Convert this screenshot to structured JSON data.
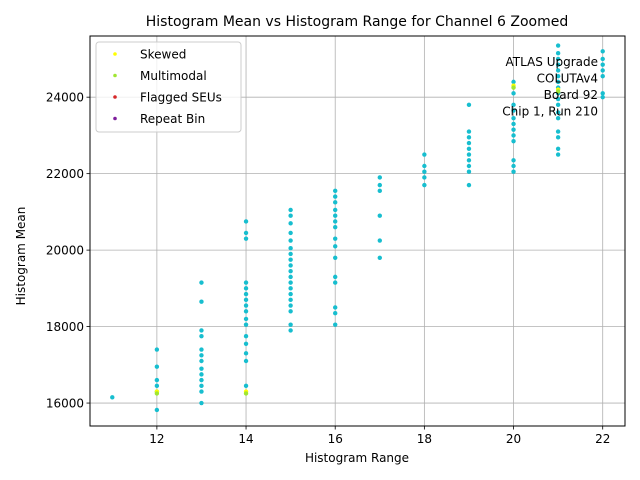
{
  "chart_data": {
    "type": "scatter",
    "title": "Histogram Mean vs Histogram Range for Channel 6 Zoomed",
    "xlabel": "Histogram Range",
    "ylabel": "Histogram Mean",
    "xlim": [
      10.5,
      22.5
    ],
    "ylim": [
      15400,
      25600
    ],
    "xticks": [
      12,
      14,
      16,
      18,
      20,
      22
    ],
    "yticks": [
      16000,
      18000,
      20000,
      22000,
      24000
    ],
    "grid": true,
    "legend_position": "top-left",
    "legend": [
      {
        "name": "Skewed",
        "color": "#ffff00"
      },
      {
        "name": "Multimodal",
        "color": "#a0e632"
      },
      {
        "name": "Flagged SEUs",
        "color": "#d62728"
      },
      {
        "name": "Repeat Bin",
        "color": "#7e1e9c"
      }
    ],
    "annotation": [
      "ATLAS Upgrade",
      "COLUTAv4",
      "Board 92",
      "Chip 1, Run 210"
    ],
    "point_color": "#17becf",
    "series": [
      {
        "name": "Skewed",
        "color": "#ffff00",
        "points": [
          [
            12,
            16300
          ],
          [
            14,
            16300
          ],
          [
            20,
            24300
          ],
          [
            21,
            24200
          ]
        ]
      },
      {
        "name": "Multimodal",
        "color": "#a0e632",
        "points": [
          [
            12,
            16250
          ],
          [
            14,
            16250
          ],
          [
            20,
            24250
          ],
          [
            21,
            24150
          ]
        ]
      },
      {
        "name": "Flagged SEUs",
        "color": "#d62728",
        "points": []
      },
      {
        "name": "Repeat Bin",
        "color": "#7e1e9c",
        "points": []
      },
      {
        "name": "",
        "color": "#17becf",
        "points": [
          [
            11,
            16150
          ],
          [
            12,
            15820
          ],
          [
            12,
            16300
          ],
          [
            12,
            16450
          ],
          [
            12,
            16600
          ],
          [
            12,
            16950
          ],
          [
            12,
            17400
          ],
          [
            13,
            16000
          ],
          [
            13,
            16300
          ],
          [
            13,
            16450
          ],
          [
            13,
            16600
          ],
          [
            13,
            16750
          ],
          [
            13,
            16900
          ],
          [
            13,
            17100
          ],
          [
            13,
            17250
          ],
          [
            13,
            17400
          ],
          [
            13,
            17750
          ],
          [
            13,
            17900
          ],
          [
            13,
            18650
          ],
          [
            13,
            19150
          ],
          [
            14,
            16450
          ],
          [
            14,
            17100
          ],
          [
            14,
            17300
          ],
          [
            14,
            17550
          ],
          [
            14,
            17750
          ],
          [
            14,
            18050
          ],
          [
            14,
            18200
          ],
          [
            14,
            18400
          ],
          [
            14,
            18550
          ],
          [
            14,
            18700
          ],
          [
            14,
            18850
          ],
          [
            14,
            19000
          ],
          [
            14,
            19150
          ],
          [
            14,
            20300
          ],
          [
            14,
            20450
          ],
          [
            14,
            20750
          ],
          [
            15,
            17900
          ],
          [
            15,
            18050
          ],
          [
            15,
            18400
          ],
          [
            15,
            18550
          ],
          [
            15,
            18700
          ],
          [
            15,
            18850
          ],
          [
            15,
            19000
          ],
          [
            15,
            19150
          ],
          [
            15,
            19300
          ],
          [
            15,
            19450
          ],
          [
            15,
            19600
          ],
          [
            15,
            19750
          ],
          [
            15,
            19900
          ],
          [
            15,
            20050
          ],
          [
            15,
            20250
          ],
          [
            15,
            20450
          ],
          [
            15,
            20700
          ],
          [
            15,
            20900
          ],
          [
            15,
            21050
          ],
          [
            16,
            18050
          ],
          [
            16,
            18350
          ],
          [
            16,
            18500
          ],
          [
            16,
            19150
          ],
          [
            16,
            19300
          ],
          [
            16,
            19800
          ],
          [
            16,
            20100
          ],
          [
            16,
            20300
          ],
          [
            16,
            20600
          ],
          [
            16,
            20750
          ],
          [
            16,
            20900
          ],
          [
            16,
            21050
          ],
          [
            16,
            21250
          ],
          [
            16,
            21400
          ],
          [
            16,
            21550
          ],
          [
            17,
            19800
          ],
          [
            17,
            20250
          ],
          [
            17,
            20900
          ],
          [
            17,
            21550
          ],
          [
            17,
            21700
          ],
          [
            17,
            21900
          ],
          [
            18,
            21700
          ],
          [
            18,
            21900
          ],
          [
            18,
            22050
          ],
          [
            18,
            22200
          ],
          [
            18,
            22500
          ],
          [
            19,
            21700
          ],
          [
            19,
            22050
          ],
          [
            19,
            22200
          ],
          [
            19,
            22350
          ],
          [
            19,
            22500
          ],
          [
            19,
            22650
          ],
          [
            19,
            22800
          ],
          [
            19,
            22950
          ],
          [
            19,
            23100
          ],
          [
            19,
            23800
          ],
          [
            20,
            22050
          ],
          [
            20,
            22200
          ],
          [
            20,
            22350
          ],
          [
            20,
            22850
          ],
          [
            20,
            23000
          ],
          [
            20,
            23150
          ],
          [
            20,
            23300
          ],
          [
            20,
            23450
          ],
          [
            20,
            23650
          ],
          [
            20,
            23800
          ],
          [
            20,
            24100
          ],
          [
            20,
            24400
          ],
          [
            21,
            22500
          ],
          [
            21,
            22650
          ],
          [
            21,
            22950
          ],
          [
            21,
            23100
          ],
          [
            21,
            23450
          ],
          [
            21,
            23600
          ],
          [
            21,
            23800
          ],
          [
            21,
            23950
          ],
          [
            21,
            24100
          ],
          [
            21,
            24250
          ],
          [
            21,
            24400
          ],
          [
            21,
            24550
          ],
          [
            21,
            24700
          ],
          [
            21,
            24850
          ],
          [
            21,
            25000
          ],
          [
            21,
            25150
          ],
          [
            21,
            25350
          ],
          [
            22,
            24000
          ],
          [
            22,
            24100
          ],
          [
            22,
            24550
          ],
          [
            22,
            24700
          ],
          [
            22,
            24850
          ],
          [
            22,
            25000
          ],
          [
            22,
            25200
          ]
        ]
      }
    ]
  }
}
